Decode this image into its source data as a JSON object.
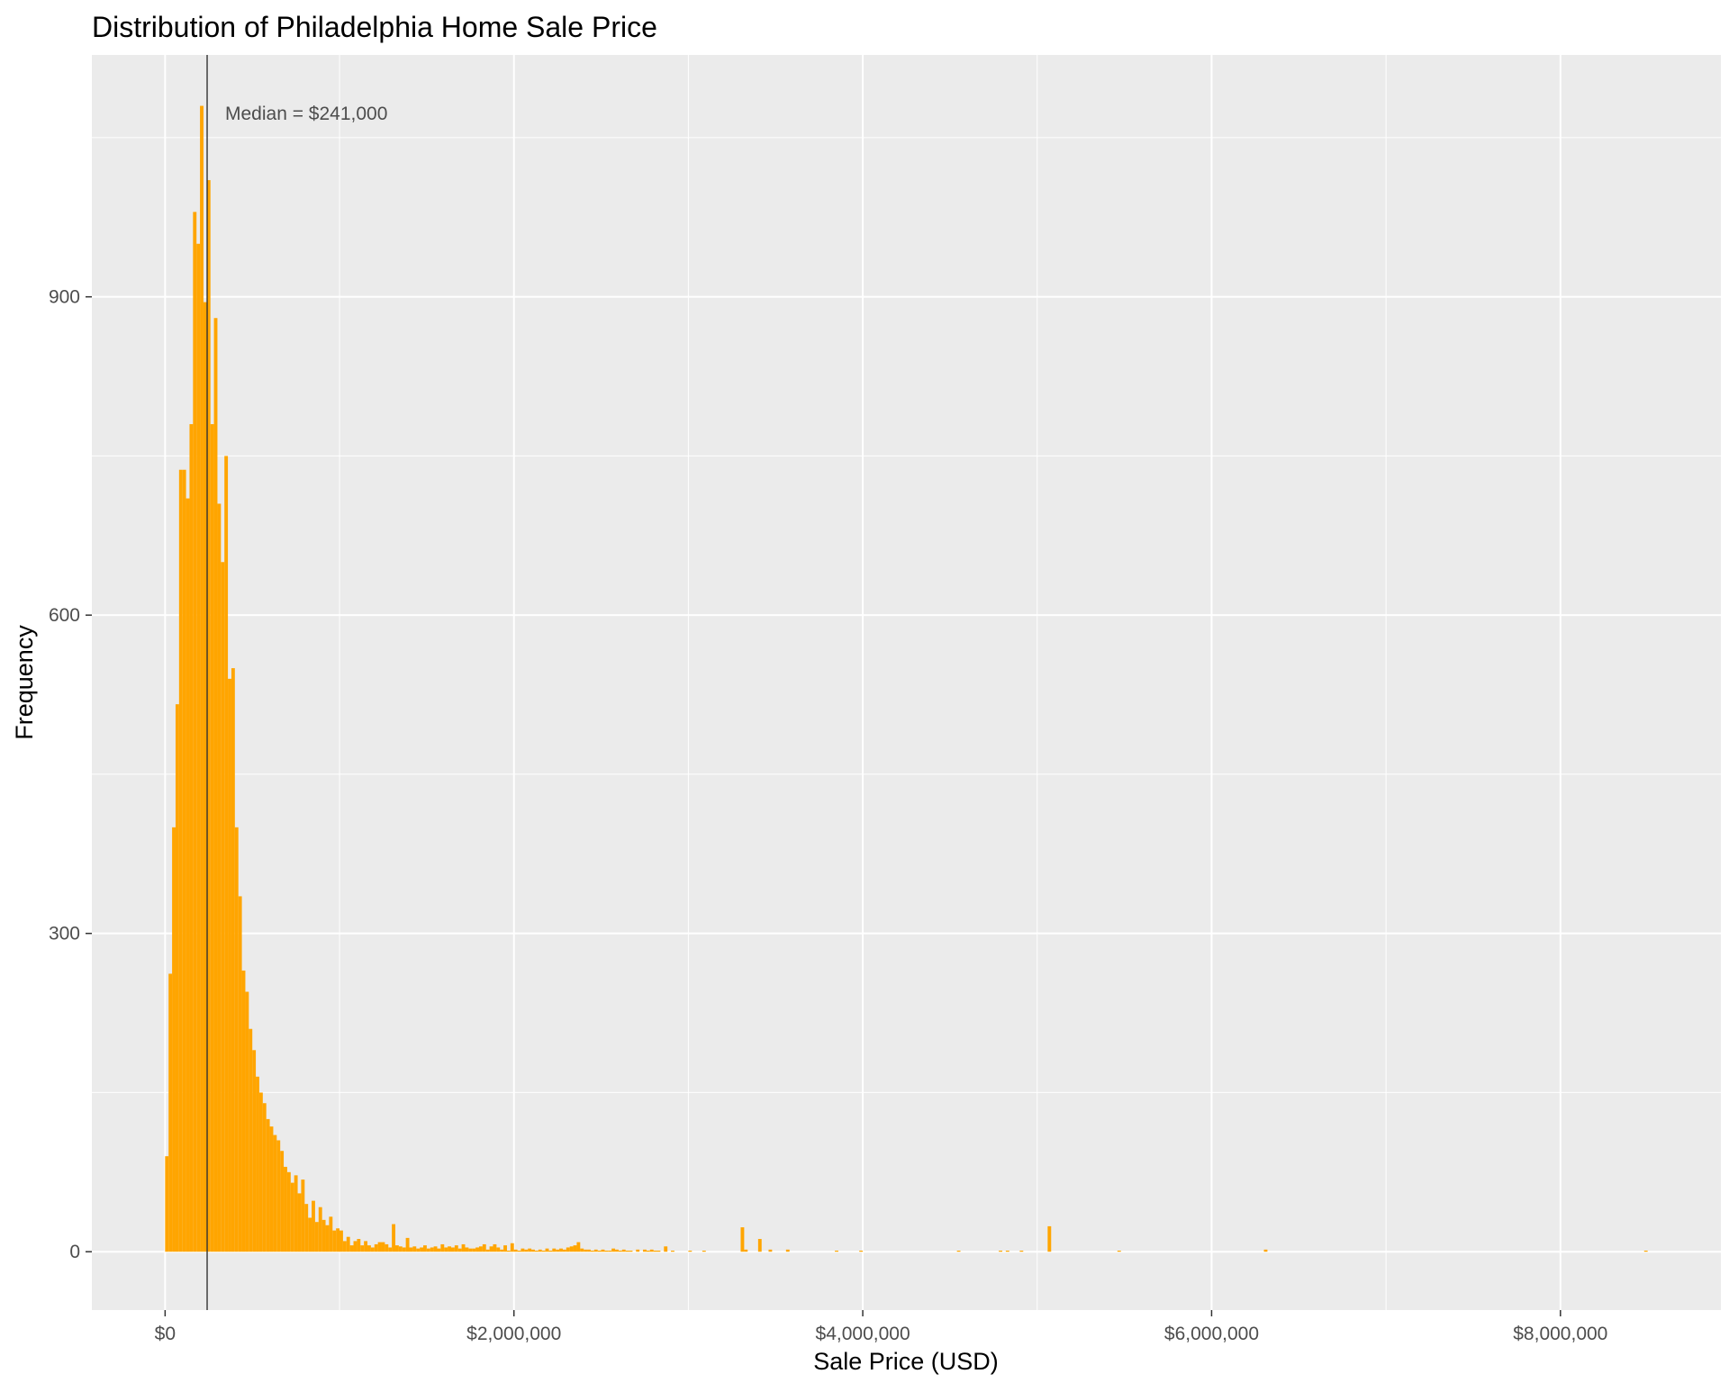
{
  "chart_data": {
    "type": "bar",
    "subtype": "histogram",
    "title": "Distribution of Philadelphia Home Sale Price",
    "xlabel": "Sale Price (USD)",
    "ylabel": "Frequency",
    "xlim": [
      -420000,
      8920000
    ],
    "ylim": [
      -55,
      1128
    ],
    "x_ticks": [
      0,
      2000000,
      4000000,
      6000000,
      8000000
    ],
    "x_tick_labels": [
      "$0",
      "$2,000,000",
      "$4,000,000",
      "$6,000,000",
      "$8,000,000"
    ],
    "y_ticks": [
      0,
      300,
      600,
      900
    ],
    "y_tick_labels": [
      "0",
      "300",
      "600",
      "900"
    ],
    "grid": true,
    "legend": "none",
    "bin_width": 20000,
    "bar_color": "#FFA500",
    "panel_color": "#EBEBEB",
    "grid_color": "#FFFFFF",
    "median": 241000,
    "median_line_color": "#333333",
    "annotation": "Median = $241,000",
    "bins": [
      [
        0,
        90
      ],
      [
        20000,
        262
      ],
      [
        40000,
        400
      ],
      [
        60000,
        516
      ],
      [
        80000,
        737
      ],
      [
        100000,
        737
      ],
      [
        120000,
        710
      ],
      [
        140000,
        780
      ],
      [
        160000,
        980
      ],
      [
        180000,
        950
      ],
      [
        200000,
        1080
      ],
      [
        220000,
        895
      ],
      [
        240000,
        1010
      ],
      [
        260000,
        780
      ],
      [
        280000,
        880
      ],
      [
        300000,
        705
      ],
      [
        320000,
        650
      ],
      [
        340000,
        750
      ],
      [
        360000,
        540
      ],
      [
        380000,
        550
      ],
      [
        400000,
        400
      ],
      [
        420000,
        335
      ],
      [
        440000,
        265
      ],
      [
        460000,
        245
      ],
      [
        480000,
        210
      ],
      [
        500000,
        190
      ],
      [
        520000,
        165
      ],
      [
        540000,
        150
      ],
      [
        560000,
        140
      ],
      [
        580000,
        125
      ],
      [
        600000,
        118
      ],
      [
        620000,
        110
      ],
      [
        640000,
        105
      ],
      [
        660000,
        95
      ],
      [
        680000,
        80
      ],
      [
        700000,
        75
      ],
      [
        720000,
        65
      ],
      [
        740000,
        72
      ],
      [
        760000,
        55
      ],
      [
        780000,
        68
      ],
      [
        800000,
        45
      ],
      [
        820000,
        32
      ],
      [
        840000,
        48
      ],
      [
        860000,
        28
      ],
      [
        880000,
        42
      ],
      [
        900000,
        30
      ],
      [
        920000,
        25
      ],
      [
        940000,
        33
      ],
      [
        960000,
        20
      ],
      [
        980000,
        22
      ],
      [
        1000000,
        20
      ],
      [
        1020000,
        10
      ],
      [
        1040000,
        14
      ],
      [
        1060000,
        6
      ],
      [
        1080000,
        10
      ],
      [
        1100000,
        12
      ],
      [
        1120000,
        6
      ],
      [
        1140000,
        10
      ],
      [
        1160000,
        6
      ],
      [
        1180000,
        4
      ],
      [
        1200000,
        7
      ],
      [
        1220000,
        9
      ],
      [
        1240000,
        9
      ],
      [
        1260000,
        7
      ],
      [
        1280000,
        4
      ],
      [
        1300000,
        26
      ],
      [
        1320000,
        6
      ],
      [
        1340000,
        5
      ],
      [
        1360000,
        4
      ],
      [
        1380000,
        13
      ],
      [
        1400000,
        4
      ],
      [
        1420000,
        5
      ],
      [
        1440000,
        3
      ],
      [
        1460000,
        4
      ],
      [
        1480000,
        6
      ],
      [
        1500000,
        3
      ],
      [
        1520000,
        4
      ],
      [
        1540000,
        5
      ],
      [
        1560000,
        3
      ],
      [
        1580000,
        7
      ],
      [
        1600000,
        4
      ],
      [
        1620000,
        5
      ],
      [
        1640000,
        4
      ],
      [
        1660000,
        6
      ],
      [
        1680000,
        3
      ],
      [
        1700000,
        7
      ],
      [
        1720000,
        4
      ],
      [
        1740000,
        3
      ],
      [
        1760000,
        3
      ],
      [
        1780000,
        4
      ],
      [
        1800000,
        5
      ],
      [
        1820000,
        7
      ],
      [
        1840000,
        2
      ],
      [
        1860000,
        5
      ],
      [
        1880000,
        7
      ],
      [
        1900000,
        4
      ],
      [
        1920000,
        2
      ],
      [
        1940000,
        6
      ],
      [
        1960000,
        1
      ],
      [
        1980000,
        8
      ],
      [
        2000000,
        2
      ],
      [
        2020000,
        1
      ],
      [
        2040000,
        3
      ],
      [
        2060000,
        2
      ],
      [
        2080000,
        3
      ],
      [
        2100000,
        2
      ],
      [
        2120000,
        1
      ],
      [
        2140000,
        2
      ],
      [
        2160000,
        1
      ],
      [
        2180000,
        3
      ],
      [
        2200000,
        1
      ],
      [
        2220000,
        3
      ],
      [
        2240000,
        2
      ],
      [
        2260000,
        3
      ],
      [
        2280000,
        2
      ],
      [
        2300000,
        4
      ],
      [
        2320000,
        5
      ],
      [
        2340000,
        6
      ],
      [
        2360000,
        9
      ],
      [
        2380000,
        3
      ],
      [
        2400000,
        2
      ],
      [
        2420000,
        2
      ],
      [
        2440000,
        1
      ],
      [
        2460000,
        2
      ],
      [
        2480000,
        1
      ],
      [
        2500000,
        2
      ],
      [
        2520000,
        1
      ],
      [
        2540000,
        1
      ],
      [
        2560000,
        3
      ],
      [
        2580000,
        2
      ],
      [
        2600000,
        1
      ],
      [
        2620000,
        2
      ],
      [
        2640000,
        1
      ],
      [
        2660000,
        1
      ],
      [
        2700000,
        2
      ],
      [
        2740000,
        2
      ],
      [
        2760000,
        1
      ],
      [
        2780000,
        2
      ],
      [
        2800000,
        1
      ],
      [
        2820000,
        1
      ],
      [
        2860000,
        5
      ],
      [
        2900000,
        1
      ],
      [
        3000000,
        1
      ],
      [
        3080000,
        1
      ],
      [
        3300000,
        23
      ],
      [
        3320000,
        2
      ],
      [
        3400000,
        12
      ],
      [
        3460000,
        2
      ],
      [
        3560000,
        2
      ],
      [
        3840000,
        1
      ],
      [
        3980000,
        1
      ],
      [
        4540000,
        1
      ],
      [
        4780000,
        1
      ],
      [
        4820000,
        1
      ],
      [
        4900000,
        1
      ],
      [
        5060000,
        24
      ],
      [
        5460000,
        1
      ],
      [
        6300000,
        2
      ],
      [
        8480000,
        1
      ]
    ]
  }
}
